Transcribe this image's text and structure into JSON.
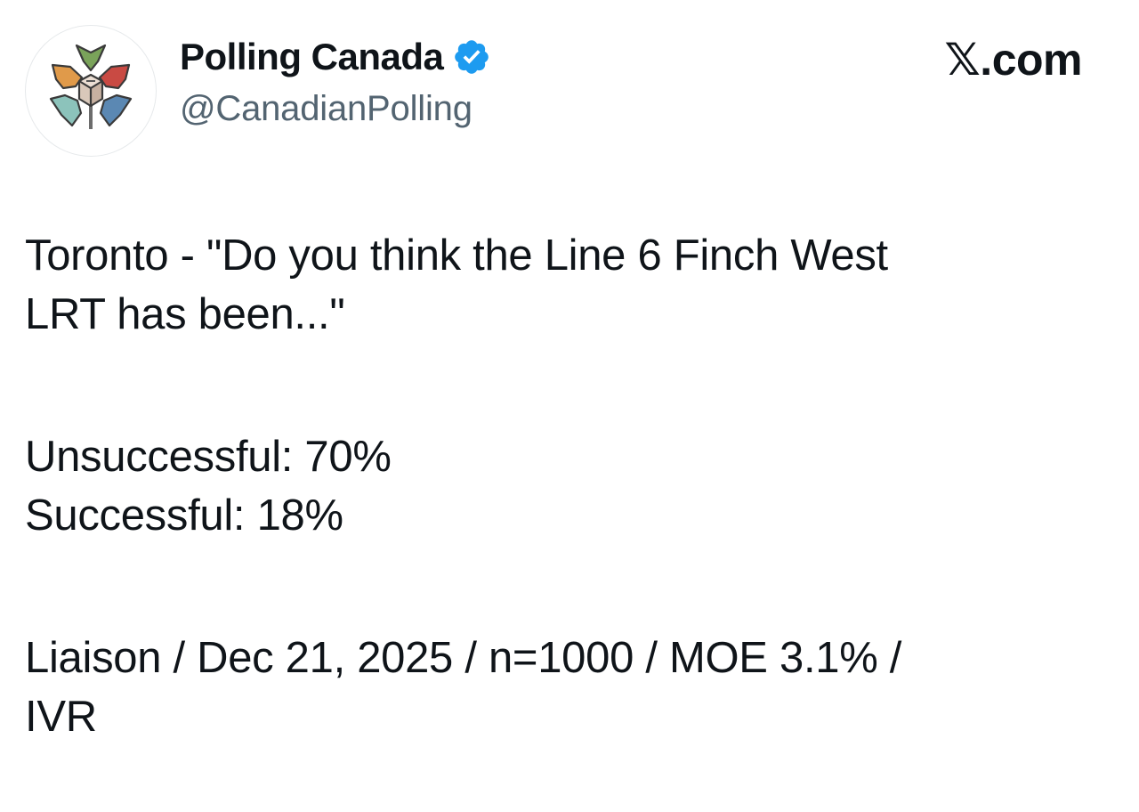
{
  "author": {
    "display_name": "Polling Canada",
    "handle": "@CanadianPolling",
    "verified": true
  },
  "site_mark": "𝕏.com",
  "tweet": {
    "question": [
      "Toronto - \"Do you think the Line 6 Finch West",
      "LRT has been...\""
    ],
    "results": [
      "Unsuccessful: 70%",
      "Successful: 18%"
    ],
    "methodology": [
      "Liaison / Dec 21, 2025 / n=1000 / MOE 3.1% /",
      "IVR"
    ]
  },
  "colors": {
    "text": "#0f1419",
    "secondary_text": "#536471",
    "verified_blue": "#1d9bf0"
  },
  "icons": {
    "avatar": "polling-canada-logo-icon",
    "badge": "verified-badge-icon"
  }
}
